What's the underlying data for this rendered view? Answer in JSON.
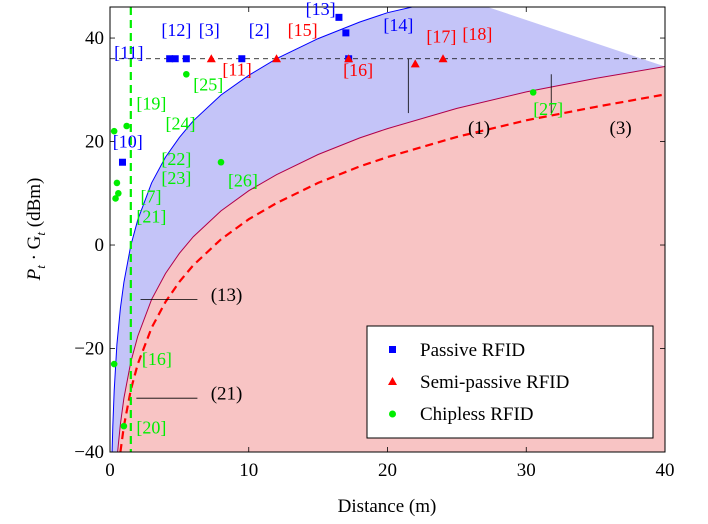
{
  "chart_data": {
    "type": "scatter",
    "xlabel": "Distance (m)",
    "ylabel_main": "P",
    "ylabel_sub1": "t",
    "ylabel_mid": " · G",
    "ylabel_sub2": "t",
    "ylabel_unit": " (dBm)",
    "xlim": [
      0,
      40
    ],
    "ylim": [
      -40,
      46
    ],
    "xticks": [
      0,
      10,
      20,
      30,
      40
    ],
    "xtick_labels": [
      "0",
      "10",
      "20",
      "30",
      "40"
    ],
    "yticks": [
      -40,
      -20,
      0,
      20,
      40
    ],
    "ytick_labels": [
      "−40",
      "−20",
      "0",
      "20",
      "40"
    ],
    "grid": false,
    "legend_position": "bottom-right",
    "colors": {
      "passive": "#0000ff",
      "semi": "#ff0000",
      "chipless": "#00ee00",
      "band_blue": "#c4c4f8",
      "band_red": "#f8c4c4"
    },
    "curves": [
      {
        "id": "upper",
        "points": [
          [
            0.15,
            -40
          ],
          [
            0.2,
            -35.1
          ],
          [
            0.3,
            -28.1
          ],
          [
            0.5,
            -19.2
          ],
          [
            0.75,
            -12.2
          ],
          [
            1,
            -7.2
          ],
          [
            1.5,
            -0.1
          ],
          [
            2,
            4.9
          ],
          [
            3,
            12
          ],
          [
            4,
            17
          ],
          [
            5,
            20.8
          ],
          [
            6,
            24
          ],
          [
            8,
            29
          ],
          [
            10,
            32.8
          ],
          [
            12,
            36
          ],
          [
            15,
            39.9
          ],
          [
            18,
            43.1
          ],
          [
            20,
            44.9
          ],
          [
            25,
            48
          ]
        ]
      },
      {
        "id": "curve_1",
        "points": [
          [
            0.75,
            -40
          ],
          [
            1,
            -35
          ],
          [
            1.5,
            -28
          ],
          [
            2,
            -23
          ],
          [
            3,
            -16
          ],
          [
            4,
            -11
          ],
          [
            5,
            -7.1
          ],
          [
            6,
            -3.9
          ],
          [
            8,
            1.1
          ],
          [
            10,
            5
          ],
          [
            12,
            8.1
          ],
          [
            15,
            12
          ],
          [
            18,
            15.2
          ],
          [
            20,
            17
          ],
          [
            25,
            20.9
          ],
          [
            30,
            24.1
          ],
          [
            35,
            26.7
          ],
          [
            40,
            29.1
          ]
        ]
      },
      {
        "id": "curve_3",
        "points": [
          [
            0.55,
            -40
          ],
          [
            0.75,
            -34.6
          ],
          [
            1,
            -29.6
          ],
          [
            1.5,
            -22.6
          ],
          [
            2,
            -17.6
          ],
          [
            3,
            -10.5
          ],
          [
            4,
            -5.5
          ],
          [
            5,
            -1.6
          ],
          [
            6,
            1.6
          ],
          [
            8,
            6.6
          ],
          [
            10,
            10.5
          ],
          [
            12,
            13.6
          ],
          [
            15,
            17.5
          ],
          [
            18,
            20.7
          ],
          [
            20,
            22.5
          ],
          [
            25,
            26.4
          ],
          [
            30,
            29.6
          ],
          [
            35,
            32.2
          ],
          [
            40,
            34.5
          ]
        ]
      },
      {
        "id": "red_dashed",
        "points": [
          [
            1.3,
            -40
          ],
          [
            1.5,
            -37.5
          ],
          [
            2,
            -32.5
          ],
          [
            3,
            -25.4
          ],
          [
            4,
            -20.4
          ],
          [
            5,
            -16.5
          ],
          [
            6,
            -13.3
          ],
          [
            8,
            -8.3
          ],
          [
            10,
            -4.5
          ],
          [
            12,
            -1.3
          ],
          [
            15,
            2.6
          ],
          [
            18,
            5.8
          ],
          [
            20,
            7.6
          ],
          [
            25,
            11.5
          ],
          [
            30,
            14.6
          ],
          [
            35,
            17.3
          ],
          [
            40,
            19.6
          ]
        ]
      }
    ],
    "reference_line_y": 36,
    "vertical_line_x": 1.5,
    "series": [
      {
        "name": "Passive RFID",
        "marker": "square",
        "color": "#0000ff",
        "points": [
          [
            0.9,
            16
          ],
          [
            4.3,
            36
          ],
          [
            4.7,
            36
          ],
          [
            5.5,
            36
          ],
          [
            9.5,
            36
          ],
          [
            16.5,
            44
          ],
          [
            17,
            41
          ],
          [
            17.2,
            36
          ]
        ],
        "labels": [
          {
            "text": "[10]",
            "x": 0.2,
            "y": 18.8
          },
          {
            "text": "[11]",
            "x": 0.3,
            "y": 36
          },
          {
            "text": "[12]",
            "x": 3.7,
            "y": 40.4
          },
          {
            "text": "[3]",
            "x": 6.4,
            "y": 40.4
          },
          {
            "text": "[2]",
            "x": 10,
            "y": 40.4
          },
          {
            "text": "[13]",
            "x": 14.1,
            "y": 44.5
          },
          {
            "text": "[14]",
            "x": 19.7,
            "y": 41.4
          }
        ]
      },
      {
        "name": "Semi-passive RFID",
        "marker": "triangle",
        "color": "#ff0000",
        "points": [
          [
            7.3,
            36
          ],
          [
            12,
            36
          ],
          [
            17.2,
            36
          ],
          [
            22,
            35
          ],
          [
            24,
            36
          ]
        ],
        "labels": [
          {
            "text": "[11]",
            "x": 8.1,
            "y": 32.8
          },
          {
            "text": "[15]",
            "x": 12.8,
            "y": 40.4
          },
          {
            "text": "[16]",
            "x": 16.8,
            "y": 32.7
          },
          {
            "text": "[17]",
            "x": 22.8,
            "y": 39.1
          },
          {
            "text": "[18]",
            "x": 25.4,
            "y": 39.6
          }
        ]
      },
      {
        "name": "Chipless RFID",
        "marker": "circle",
        "color": "#00ee00",
        "points": [
          [
            0.3,
            22
          ],
          [
            0.5,
            12
          ],
          [
            0.6,
            10
          ],
          [
            0.4,
            9
          ],
          [
            1.2,
            23
          ],
          [
            5.5,
            33
          ],
          [
            8,
            16
          ],
          [
            30.5,
            29.5
          ],
          [
            0.3,
            -23
          ],
          [
            1,
            -35
          ]
        ],
        "labels": [
          {
            "text": "[19]",
            "x": 1.9,
            "y": 26.2
          },
          {
            "text": "[24]",
            "x": 4,
            "y": 22.3
          },
          {
            "text": "[25]",
            "x": 6,
            "y": 29.9
          },
          {
            "text": "[22]",
            "x": 3.7,
            "y": 15.5
          },
          {
            "text": "[23]",
            "x": 3.7,
            "y": 11.8
          },
          {
            "text": "[7]",
            "x": 2.2,
            "y": 8.2
          },
          {
            "text": "[21]",
            "x": 1.9,
            "y": 4.4
          },
          {
            "text": "[26]",
            "x": 8.5,
            "y": 11.3
          },
          {
            "text": "[27]",
            "x": 30.5,
            "y": 25.1
          },
          {
            "text": "[16]",
            "x": 2.3,
            "y": -23.2
          },
          {
            "text": "[20]",
            "x": 1.9,
            "y": -36.4
          }
        ]
      }
    ],
    "annotations": [
      {
        "text": "(1)",
        "x": 26.6,
        "y": 21.5
      },
      {
        "text": "(3)",
        "x": 36.8,
        "y": 21.5
      },
      {
        "text": "(13)",
        "x": 8.4,
        "y": -10.8
      },
      {
        "text": "(21)",
        "x": 8.4,
        "y": -29.9
      }
    ]
  }
}
